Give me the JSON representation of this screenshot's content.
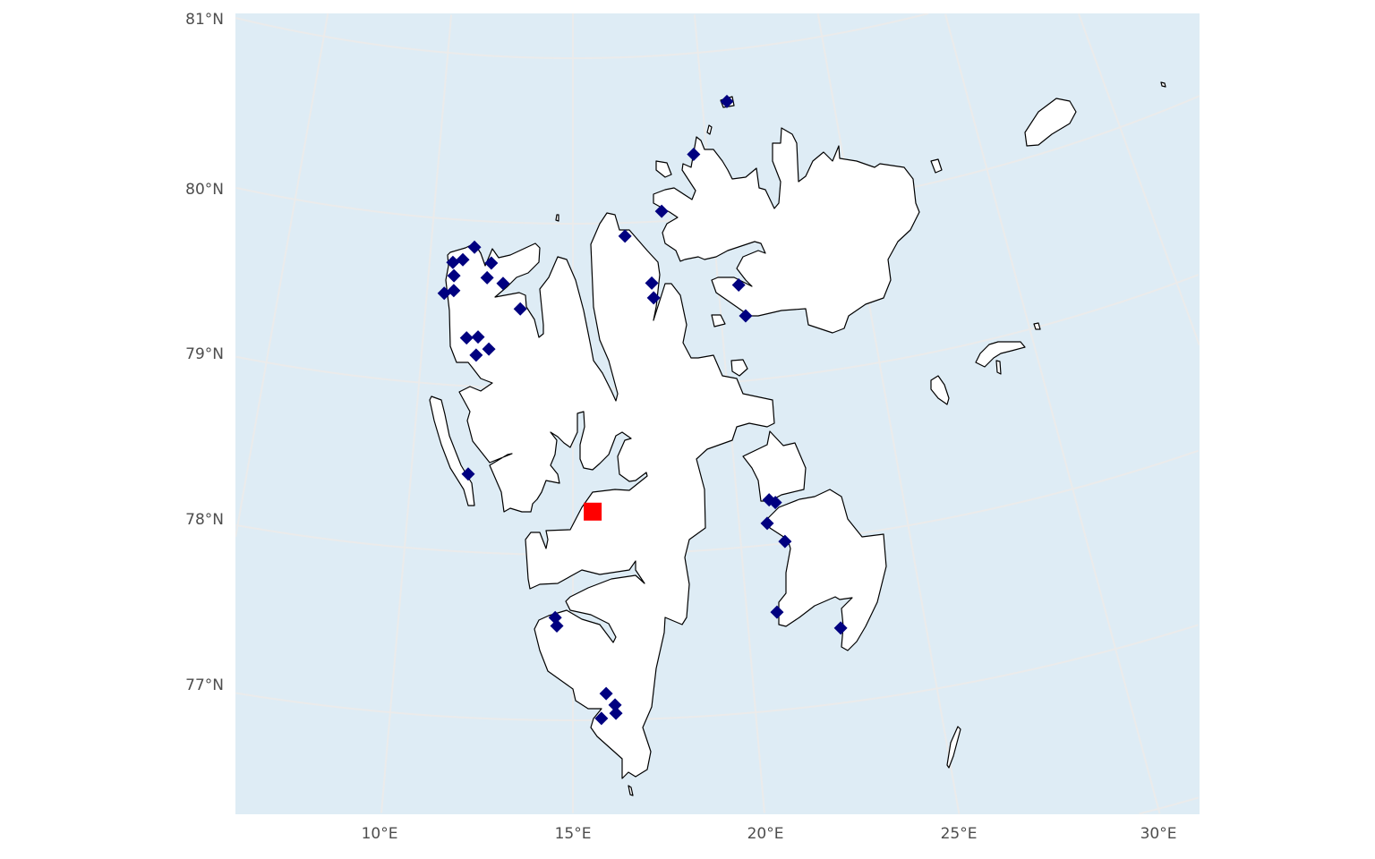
{
  "colors": {
    "ocean": "#deecf5",
    "land": "#ffffff",
    "coastline": "#000000",
    "graticule": "#ebebeb",
    "station_marker": "#000080",
    "highlight_marker": "#ff0000"
  },
  "axes": {
    "lat_labels": [
      "81°N",
      "80°N",
      "79°N",
      "78°N",
      "77°N"
    ],
    "lat_values": [
      81,
      80,
      79,
      78,
      77
    ],
    "lon_labels": [
      "10°E",
      "15°E",
      "20°E",
      "25°E",
      "30°E"
    ],
    "lon_values": [
      10,
      15,
      20,
      25,
      30
    ],
    "graticule_lons": [
      5,
      10,
      15,
      20,
      25,
      30,
      35
    ],
    "graticule_lats": [
      76,
      77,
      78,
      79,
      80,
      81
    ]
  },
  "markers": {
    "shape": "diamond",
    "stations": [
      {
        "lon": 11.53,
        "lat": 79.84
      },
      {
        "lon": 10.81,
        "lat": 79.74
      },
      {
        "lon": 11.15,
        "lat": 79.76
      },
      {
        "lon": 12.15,
        "lat": 79.75
      },
      {
        "lon": 10.88,
        "lat": 79.66
      },
      {
        "lon": 12.03,
        "lat": 79.66
      },
      {
        "lon": 12.59,
        "lat": 79.63
      },
      {
        "lon": 10.59,
        "lat": 79.55
      },
      {
        "lon": 10.91,
        "lat": 79.57
      },
      {
        "lon": 13.21,
        "lat": 79.48
      },
      {
        "lon": 11.45,
        "lat": 79.29
      },
      {
        "lon": 11.83,
        "lat": 79.3
      },
      {
        "lon": 12.21,
        "lat": 79.23
      },
      {
        "lon": 11.8,
        "lat": 79.19
      },
      {
        "lon": 11.76,
        "lat": 78.47
      },
      {
        "lon": 16.85,
        "lat": 79.92
      },
      {
        "lon": 17.72,
        "lat": 79.63
      },
      {
        "lon": 17.76,
        "lat": 79.54
      },
      {
        "lon": 18.2,
        "lat": 80.06
      },
      {
        "lon": 20.95,
        "lat": 80.69
      },
      {
        "lon": 19.51,
        "lat": 80.39
      },
      {
        "lon": 20.7,
        "lat": 79.58
      },
      {
        "lon": 20.83,
        "lat": 79.39
      },
      {
        "lon": 20.97,
        "lat": 78.27
      },
      {
        "lon": 21.15,
        "lat": 78.25
      },
      {
        "lon": 20.84,
        "lat": 78.13
      },
      {
        "lon": 21.31,
        "lat": 78.01
      },
      {
        "lon": 20.86,
        "lat": 77.59
      },
      {
        "lon": 22.61,
        "lat": 77.45
      },
      {
        "lon": 14.49,
        "lat": 77.62
      },
      {
        "lon": 14.54,
        "lat": 77.57
      },
      {
        "lon": 15.92,
        "lat": 77.16
      },
      {
        "lon": 16.16,
        "lat": 77.09
      },
      {
        "lon": 16.18,
        "lat": 77.04
      },
      {
        "lon": 15.78,
        "lat": 77.01
      }
    ],
    "highlight": {
      "shape": "square",
      "lon": 15.6,
      "lat": 78.26
    }
  }
}
